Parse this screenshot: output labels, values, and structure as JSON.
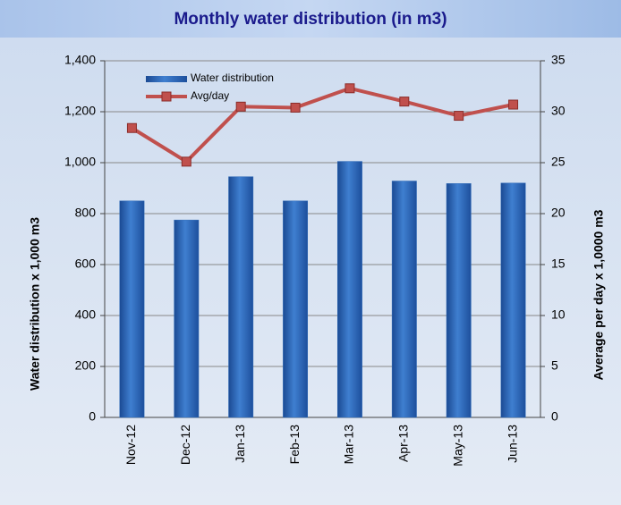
{
  "chart_data": {
    "type": "bar",
    "title": "Monthly water distribution (in m3)",
    "categories": [
      "Nov-12",
      "Dec-12",
      "Jan-13",
      "Feb-13",
      "Mar-13",
      "Apr-13",
      "May-13",
      "Jun-13"
    ],
    "series": [
      {
        "name": "Water distribution",
        "color": "#2f6bb8",
        "values": [
          850,
          775,
          945,
          850,
          1005,
          928,
          918,
          920
        ]
      },
      {
        "name": "Avg/day",
        "color": "#c0504d",
        "type": "line",
        "axis": "y2",
        "values": [
          28.4,
          25.1,
          30.5,
          30.4,
          32.3,
          31.0,
          29.6,
          30.7
        ]
      }
    ],
    "y_label": "Water distribution x 1,000 m3",
    "y2_label": "Average per day x 1,0000 m3",
    "ylim": [
      0,
      1400
    ],
    "yticks": [
      0,
      200,
      400,
      600,
      800,
      {
        "value": 1000,
        "label": "1,000"
      },
      {
        "value": 1200,
        "label": "1,200"
      },
      {
        "value": 1400,
        "label": "1,400"
      }
    ],
    "y2lim": [
      0,
      35
    ],
    "y2ticks": [
      0,
      5,
      10,
      15,
      20,
      25,
      30,
      35
    ],
    "grid": true,
    "legend": "top-left"
  }
}
